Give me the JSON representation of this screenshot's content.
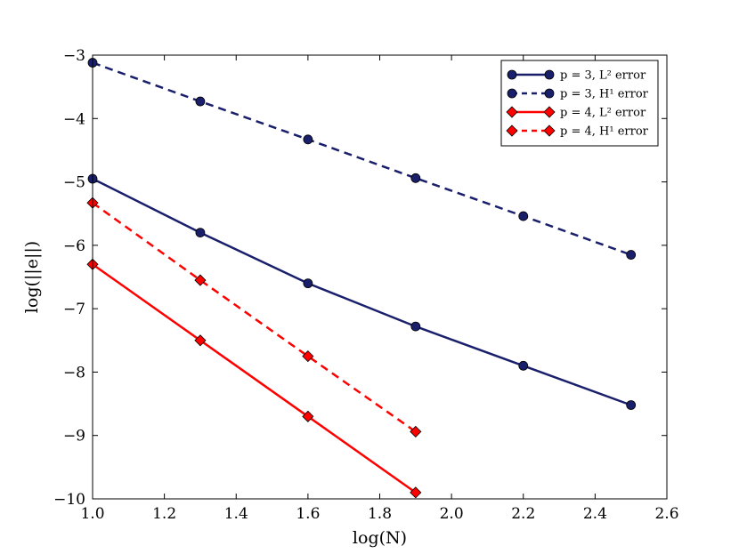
{
  "chart_data": {
    "type": "line",
    "title": "",
    "xlabel": "log(N)",
    "ylabel": "log(||e||)",
    "xlim": [
      1.0,
      2.6
    ],
    "ylim": [
      -10,
      -3
    ],
    "xticks": [
      1.0,
      1.2,
      1.4,
      1.6,
      1.8,
      2.0,
      2.2,
      2.4,
      2.6
    ],
    "xtick_labels": [
      "1.0",
      "1.2",
      "1.4",
      "1.6",
      "1.8",
      "2.0",
      "2.2",
      "2.4",
      "2.6"
    ],
    "yticks": [
      -10,
      -9,
      -8,
      -7,
      -6,
      -5,
      -4,
      -3
    ],
    "ytick_labels": [
      "−10",
      "−9",
      "−8",
      "−7",
      "−6",
      "−5",
      "−4",
      "−3"
    ],
    "grid": false,
    "legend_position": "top-right",
    "series": [
      {
        "name": "p = 3, L² error",
        "color": "#1a1f6b",
        "line_style": "solid",
        "marker": "circle",
        "x": [
          1.0,
          1.3,
          1.6,
          1.9,
          2.2,
          2.5
        ],
        "y": [
          -4.95,
          -5.8,
          -6.6,
          -7.28,
          -7.9,
          -8.52
        ]
      },
      {
        "name": "p = 3, H¹ error",
        "color": "#1a1f6b",
        "line_style": "dashed",
        "marker": "circle",
        "x": [
          1.0,
          1.3,
          1.6,
          1.9,
          2.2,
          2.5
        ],
        "y": [
          -3.12,
          -3.73,
          -4.33,
          -4.94,
          -5.54,
          -6.15
        ]
      },
      {
        "name": "p = 4, L² error",
        "color": "#ff0000",
        "line_style": "solid",
        "marker": "diamond",
        "x": [
          1.0,
          1.3,
          1.6,
          1.9
        ],
        "y": [
          -6.3,
          -7.5,
          -8.7,
          -9.9
        ]
      },
      {
        "name": "p = 4, H¹ error",
        "color": "#ff0000",
        "line_style": "dashed",
        "marker": "diamond",
        "x": [
          1.0,
          1.3,
          1.6,
          1.9
        ],
        "y": [
          -5.33,
          -6.55,
          -7.75,
          -8.94
        ]
      }
    ]
  }
}
